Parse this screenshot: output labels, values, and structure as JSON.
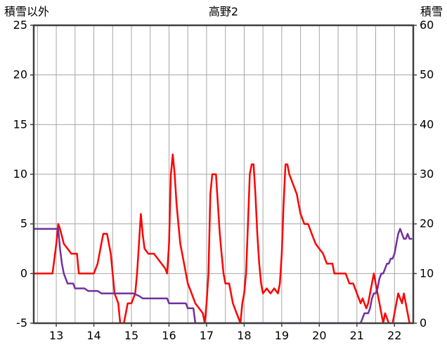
{
  "chart_data": {
    "type": "line",
    "title": "高野2",
    "x_axis": {
      "min": 12.4,
      "max": 22.5,
      "tick_labels": [
        "13",
        "14",
        "15",
        "16",
        "17",
        "18",
        "19",
        "20",
        "21",
        "22"
      ],
      "tick_positions": [
        13,
        14,
        15,
        16,
        17,
        18,
        19,
        20,
        21,
        22
      ],
      "gridline_step": 0.5
    },
    "left_axis": {
      "label": "積雪以外",
      "min": -5,
      "max": 25,
      "ticks": [
        25,
        20,
        15,
        10,
        5,
        0,
        -5
      ]
    },
    "right_axis": {
      "label": "積雪",
      "min": 0,
      "max": 60,
      "ticks": [
        60,
        50,
        40,
        30,
        20,
        10,
        0
      ]
    },
    "grid": {
      "color": "#a6a6a6",
      "frame_color": "#404040"
    },
    "series": [
      {
        "name": "積雪以外",
        "axis": "left",
        "color": "#ff0000",
        "points": [
          [
            12.4,
            0
          ],
          [
            12.9,
            0
          ],
          [
            13.0,
            3
          ],
          [
            13.05,
            5
          ],
          [
            13.1,
            4.5
          ],
          [
            13.2,
            3
          ],
          [
            13.3,
            2.5
          ],
          [
            13.4,
            2
          ],
          [
            13.55,
            2
          ],
          [
            13.6,
            0
          ],
          [
            14.0,
            0
          ],
          [
            14.1,
            1
          ],
          [
            14.2,
            3
          ],
          [
            14.25,
            4
          ],
          [
            14.35,
            4
          ],
          [
            14.45,
            2
          ],
          [
            14.5,
            0
          ],
          [
            14.55,
            -2
          ],
          [
            14.65,
            -3
          ],
          [
            14.7,
            -5
          ],
          [
            14.8,
            -5
          ],
          [
            14.9,
            -3
          ],
          [
            15.0,
            -3
          ],
          [
            15.1,
            -2
          ],
          [
            15.15,
            0
          ],
          [
            15.2,
            3
          ],
          [
            15.25,
            6
          ],
          [
            15.3,
            4
          ],
          [
            15.35,
            2.5
          ],
          [
            15.45,
            2
          ],
          [
            15.6,
            2
          ],
          [
            15.7,
            1.5
          ],
          [
            15.8,
            1
          ],
          [
            15.9,
            0.5
          ],
          [
            15.95,
            0
          ],
          [
            16.0,
            3
          ],
          [
            16.05,
            10
          ],
          [
            16.1,
            12
          ],
          [
            16.15,
            10
          ],
          [
            16.2,
            7
          ],
          [
            16.25,
            5
          ],
          [
            16.3,
            3
          ],
          [
            16.4,
            1
          ],
          [
            16.5,
            -1
          ],
          [
            16.6,
            -2
          ],
          [
            16.7,
            -3
          ],
          [
            16.8,
            -3.5
          ],
          [
            16.9,
            -4
          ],
          [
            16.95,
            -5
          ],
          [
            17.0,
            -3
          ],
          [
            17.05,
            0
          ],
          [
            17.1,
            8
          ],
          [
            17.15,
            10
          ],
          [
            17.25,
            10
          ],
          [
            17.3,
            7
          ],
          [
            17.35,
            4
          ],
          [
            17.4,
            2
          ],
          [
            17.45,
            0
          ],
          [
            17.5,
            -1
          ],
          [
            17.6,
            -1
          ],
          [
            17.7,
            -3
          ],
          [
            17.8,
            -4
          ],
          [
            17.9,
            -5
          ],
          [
            17.95,
            -3
          ],
          [
            18.0,
            -2
          ],
          [
            18.05,
            0
          ],
          [
            18.1,
            5
          ],
          [
            18.15,
            10
          ],
          [
            18.2,
            11
          ],
          [
            18.25,
            11
          ],
          [
            18.3,
            8
          ],
          [
            18.35,
            4
          ],
          [
            18.4,
            1
          ],
          [
            18.45,
            -1
          ],
          [
            18.5,
            -2
          ],
          [
            18.6,
            -1.5
          ],
          [
            18.7,
            -2
          ],
          [
            18.8,
            -1.5
          ],
          [
            18.9,
            -2
          ],
          [
            18.95,
            -1
          ],
          [
            19.0,
            2
          ],
          [
            19.05,
            7
          ],
          [
            19.1,
            11
          ],
          [
            19.15,
            11
          ],
          [
            19.2,
            10
          ],
          [
            19.3,
            9
          ],
          [
            19.4,
            8
          ],
          [
            19.45,
            7
          ],
          [
            19.5,
            6
          ],
          [
            19.6,
            5
          ],
          [
            19.7,
            5
          ],
          [
            19.8,
            4
          ],
          [
            19.9,
            3
          ],
          [
            20.0,
            2.5
          ],
          [
            20.1,
            2
          ],
          [
            20.2,
            1
          ],
          [
            20.35,
            1
          ],
          [
            20.4,
            0
          ],
          [
            20.7,
            0
          ],
          [
            20.8,
            -1
          ],
          [
            20.9,
            -1
          ],
          [
            21.0,
            -2
          ],
          [
            21.1,
            -3
          ],
          [
            21.15,
            -2.5
          ],
          [
            21.2,
            -3
          ],
          [
            21.25,
            -3.5
          ],
          [
            21.3,
            -3
          ],
          [
            21.35,
            -2
          ],
          [
            21.45,
            0
          ],
          [
            21.5,
            -1
          ],
          [
            21.55,
            -2
          ],
          [
            21.6,
            -3
          ],
          [
            21.65,
            -4
          ],
          [
            21.7,
            -5
          ],
          [
            21.75,
            -4
          ],
          [
            21.8,
            -4.5
          ],
          [
            21.85,
            -5
          ],
          [
            21.95,
            -5
          ],
          [
            22.0,
            -4
          ],
          [
            22.05,
            -3
          ],
          [
            22.1,
            -2
          ],
          [
            22.15,
            -2.5
          ],
          [
            22.2,
            -3
          ],
          [
            22.25,
            -2
          ],
          [
            22.3,
            -3
          ],
          [
            22.35,
            -4
          ],
          [
            22.4,
            -5
          ],
          [
            22.45,
            -5
          ]
        ]
      },
      {
        "name": "積雪",
        "axis": "right",
        "color": "#7030a0",
        "points": [
          [
            12.4,
            19
          ],
          [
            13.05,
            19
          ],
          [
            13.1,
            15
          ],
          [
            13.15,
            12
          ],
          [
            13.2,
            10
          ],
          [
            13.3,
            8
          ],
          [
            13.45,
            8
          ],
          [
            13.5,
            7
          ],
          [
            13.75,
            7
          ],
          [
            13.85,
            6.5
          ],
          [
            14.1,
            6.5
          ],
          [
            14.2,
            6
          ],
          [
            15.05,
            6
          ],
          [
            15.2,
            5.5
          ],
          [
            15.3,
            5
          ],
          [
            15.95,
            5
          ],
          [
            16.0,
            4
          ],
          [
            16.45,
            4
          ],
          [
            16.5,
            3
          ],
          [
            16.65,
            3
          ],
          [
            16.7,
            0
          ],
          [
            21.1,
            0
          ],
          [
            21.15,
            1
          ],
          [
            21.2,
            2
          ],
          [
            21.3,
            2
          ],
          [
            21.35,
            3
          ],
          [
            21.4,
            5
          ],
          [
            21.45,
            6
          ],
          [
            21.5,
            6
          ],
          [
            21.55,
            7
          ],
          [
            21.6,
            9
          ],
          [
            21.65,
            10
          ],
          [
            21.7,
            10
          ],
          [
            21.75,
            11
          ],
          [
            21.8,
            12
          ],
          [
            21.85,
            12
          ],
          [
            21.9,
            13
          ],
          [
            21.95,
            13
          ],
          [
            22.0,
            14
          ],
          [
            22.05,
            16
          ],
          [
            22.1,
            18
          ],
          [
            22.15,
            19
          ],
          [
            22.2,
            18
          ],
          [
            22.25,
            17
          ],
          [
            22.3,
            17
          ],
          [
            22.35,
            18
          ],
          [
            22.4,
            17
          ],
          [
            22.45,
            17
          ]
        ]
      }
    ]
  }
}
